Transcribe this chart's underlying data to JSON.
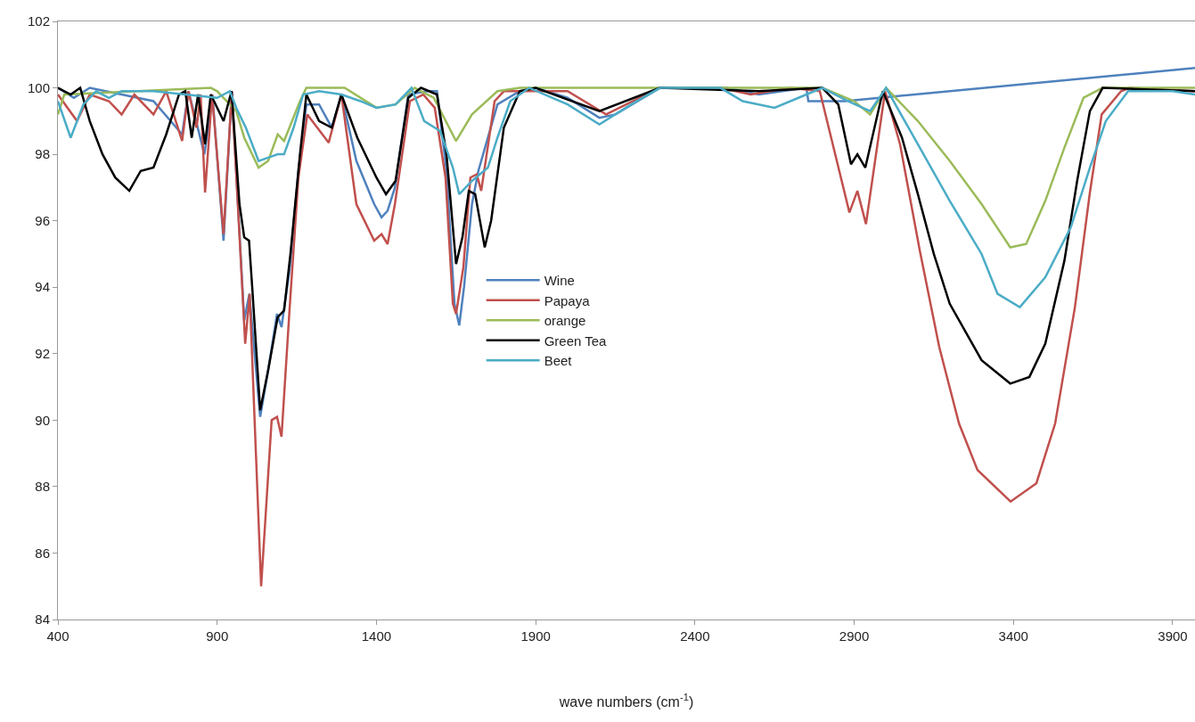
{
  "chart_data": {
    "type": "line",
    "xlabel": "wave numbers (cm$^{-1}$)",
    "xlim": [
      400,
      3970
    ],
    "ylim": [
      84,
      102
    ],
    "xticks": [
      400,
      900,
      1400,
      1900,
      2400,
      2900,
      3400,
      3900
    ],
    "yticks": [
      84,
      86,
      88,
      90,
      92,
      94,
      96,
      98,
      100,
      102
    ],
    "grid": false,
    "legend": "center",
    "marker": "none",
    "line_style": "solid",
    "series": [
      {
        "name": "Wine",
        "color": "#4f81bd",
        "x": [
          400,
          450,
          500,
          600,
          700,
          790,
          810,
          860,
          885,
          920,
          946,
          985,
          1001,
          1035,
          1060,
          1088,
          1102,
          1127,
          1155,
          1180,
          1220,
          1260,
          1290,
          1337,
          1393,
          1416,
          1435,
          1458,
          1500,
          1560,
          1590,
          1620,
          1645,
          1660,
          1675,
          1700,
          1720,
          1750,
          1780,
          1850,
          1900,
          2000,
          2100,
          2150,
          2290,
          2500,
          2600,
          2750,
          2756,
          2870,
          3970
        ],
        "values": [
          100,
          99.7,
          100,
          99.8,
          99.6,
          98.6,
          99.9,
          98.0,
          99.8,
          95.4,
          99.9,
          93.0,
          93.8,
          90.1,
          91.5,
          93.2,
          92.8,
          94.5,
          97.5,
          99.5,
          99.5,
          98.8,
          99.8,
          97.8,
          96.5,
          96.1,
          96.3,
          97.0,
          99.8,
          99.9,
          99.9,
          97.5,
          93.5,
          92.85,
          94.0,
          96.5,
          97.5,
          98.5,
          99.5,
          99.9,
          100,
          99.7,
          99.1,
          99.2,
          100,
          100,
          99.8,
          100,
          99.6,
          99.6,
          100.6
        ]
      },
      {
        "name": "Papaya",
        "color": "#c0504d",
        "x": [
          400,
          460,
          500,
          560,
          600,
          640,
          700,
          740,
          790,
          810,
          835,
          848,
          862,
          884,
          920,
          946,
          988,
          1002,
          1038,
          1071,
          1088,
          1102,
          1127,
          1155,
          1183,
          1250,
          1290,
          1337,
          1393,
          1416,
          1435,
          1458,
          1505,
          1547,
          1583,
          1617,
          1640,
          1650,
          1673,
          1695,
          1715,
          1729,
          1743,
          1771,
          1800,
          2000,
          2121,
          2289,
          2480,
          2575,
          2700,
          2792,
          2885,
          2910,
          2937,
          2997,
          3044,
          3106,
          3167,
          3229,
          3287,
          3391,
          3472,
          3531,
          3593,
          3640,
          3677,
          3738,
          3765,
          3970
        ],
        "values": [
          99.8,
          99.0,
          99.8,
          99.6,
          99.2,
          99.8,
          99.2,
          99.9,
          98.4,
          99.9,
          98.8,
          99.8,
          96.85,
          99.8,
          95.6,
          99.9,
          92.3,
          93.8,
          85.0,
          90.0,
          90.1,
          89.5,
          93.3,
          97.3,
          99.2,
          98.35,
          99.8,
          96.5,
          95.4,
          95.6,
          95.3,
          96.5,
          99.6,
          99.8,
          99.4,
          97.3,
          93.5,
          93.2,
          94.6,
          97.3,
          97.4,
          96.9,
          97.8,
          99.6,
          99.9,
          99.9,
          99.2,
          100,
          100,
          99.8,
          100,
          99.9,
          96.25,
          96.9,
          95.9,
          99.9,
          98.3,
          95.1,
          92.2,
          89.9,
          88.5,
          87.55,
          88.1,
          89.9,
          93.4,
          96.85,
          99.2,
          99.9,
          100,
          99.9
        ]
      },
      {
        "name": "orange",
        "color": "#9bbb59",
        "x": [
          400,
          420,
          880,
          900,
          960,
          985,
          1030,
          1060,
          1090,
          1110,
          1160,
          1180,
          1300,
          1400,
          1460,
          1520,
          1580,
          1650,
          1700,
          1780,
          1850,
          2800,
          2900,
          2950,
          3000,
          3100,
          3200,
          3300,
          3390,
          3440,
          3500,
          3560,
          3620,
          3680,
          3970
        ],
        "values": [
          99.2,
          99.8,
          100,
          99.9,
          99.3,
          98.5,
          97.6,
          97.8,
          98.6,
          98.4,
          99.6,
          100,
          100,
          99.4,
          99.5,
          100,
          99.7,
          98.4,
          99.2,
          99.9,
          100,
          100,
          99.6,
          99.2,
          100,
          99.0,
          97.8,
          96.5,
          95.2,
          95.3,
          96.6,
          98.2,
          99.7,
          100,
          100
        ]
      },
      {
        "name": "Green Tea",
        "color": "#000000",
        "x": [
          400,
          440,
          470,
          500,
          540,
          580,
          624,
          660,
          700,
          740,
          780,
          800,
          820,
          840,
          862,
          880,
          920,
          945,
          970,
          985,
          1000,
          1010,
          1035,
          1060,
          1090,
          1110,
          1130,
          1160,
          1180,
          1220,
          1260,
          1290,
          1340,
          1400,
          1430,
          1460,
          1500,
          1540,
          1590,
          1620,
          1650,
          1670,
          1690,
          1710,
          1740,
          1760,
          1800,
          1850,
          1900,
          2100,
          2290,
          2600,
          2800,
          2850,
          2890,
          2910,
          2935,
          2990,
          3050,
          3100,
          3150,
          3200,
          3300,
          3390,
          3450,
          3500,
          3560,
          3600,
          3640,
          3680,
          3970
        ],
        "values": [
          100,
          99.8,
          100,
          99.0,
          98.0,
          97.3,
          96.9,
          97.5,
          97.6,
          98.6,
          99.8,
          99.9,
          98.5,
          99.8,
          98.3,
          99.8,
          99.0,
          99.9,
          96.5,
          95.5,
          95.4,
          94.0,
          90.3,
          91.5,
          93.1,
          93.3,
          95.0,
          98.0,
          99.8,
          99.0,
          98.8,
          99.8,
          98.5,
          97.3,
          96.8,
          97.2,
          99.7,
          100,
          99.8,
          98.0,
          94.7,
          95.5,
          96.9,
          96.8,
          95.2,
          96.0,
          98.8,
          99.9,
          100,
          99.3,
          100,
          99.9,
          100,
          99.5,
          97.7,
          98.0,
          97.6,
          99.9,
          98.5,
          96.8,
          95.0,
          93.5,
          91.8,
          91.1,
          91.3,
          92.3,
          94.8,
          97.2,
          99.3,
          100,
          99.9
        ]
      },
      {
        "name": "Beet",
        "color": "#4bacc6",
        "x": [
          400,
          440,
          480,
          520,
          560,
          600,
          700,
          800,
          900,
          940,
          960,
          990,
          1030,
          1060,
          1090,
          1110,
          1140,
          1170,
          1220,
          1290,
          1350,
          1400,
          1460,
          1510,
          1550,
          1600,
          1640,
          1660,
          1700,
          1750,
          1780,
          1820,
          1880,
          2000,
          2100,
          2200,
          2290,
          2480,
          2550,
          2650,
          2750,
          2800,
          2880,
          2950,
          3000,
          3100,
          3200,
          3300,
          3350,
          3420,
          3500,
          3580,
          3640,
          3690,
          3760,
          3900,
          3970
        ],
        "values": [
          99.6,
          98.5,
          99.5,
          99.9,
          99.7,
          99.9,
          99.9,
          99.8,
          99.7,
          99.9,
          99.4,
          98.8,
          97.8,
          97.9,
          98.0,
          98.0,
          98.8,
          99.8,
          99.9,
          99.8,
          99.6,
          99.4,
          99.5,
          100,
          99.0,
          98.7,
          97.6,
          96.8,
          97.2,
          97.6,
          98.5,
          99.6,
          100,
          99.5,
          98.9,
          99.5,
          100,
          100,
          99.6,
          99.4,
          99.8,
          100,
          99.6,
          99.3,
          100,
          98.3,
          96.6,
          95.0,
          93.8,
          93.4,
          94.3,
          95.8,
          97.6,
          99.0,
          99.9,
          99.9,
          99.8
        ]
      }
    ]
  }
}
